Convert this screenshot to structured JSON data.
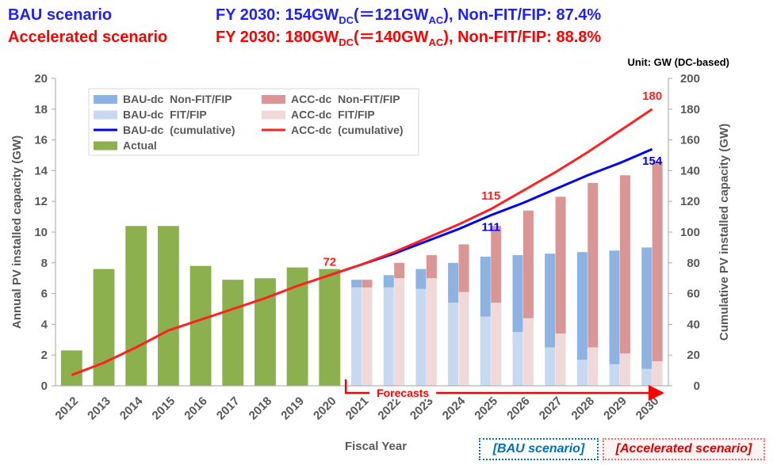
{
  "header": {
    "bau": {
      "label": "BAU scenario",
      "color": "#1f1fff",
      "parts": [
        "FY 2030: 154GW",
        {
          "sub": "DC"
        },
        "(＝121GW",
        {
          "sub": "AC"
        },
        "), Non-FIT/FIP: 87.4%"
      ]
    },
    "acc": {
      "label": "Accelerated scenario",
      "color": "#ff0000",
      "parts": [
        "FY 2030: 180GW",
        {
          "sub": "DC"
        },
        "(＝140GW",
        {
          "sub": "AC"
        },
        "), Non-FIT/FIP: 88.8%"
      ]
    }
  },
  "chart_data": {
    "type": "bar",
    "unit": "Unit: GW (DC-based)",
    "xlabel": "Fiscal Year",
    "ylabel": "Annual PV installed capacity (GW)",
    "y2label": "Cumulative PV installed capacity (GW)",
    "forecast_label": "Forecasts",
    "categories": [
      "2012",
      "2013",
      "2014",
      "2015",
      "2016",
      "2017",
      "2018",
      "2019",
      "2020",
      "2021",
      "2022",
      "2023",
      "2024",
      "2025",
      "2026",
      "2027",
      "2028",
      "2029",
      "2030"
    ],
    "ylim": [
      0,
      20
    ],
    "yticks": [
      0,
      2,
      4,
      6,
      8,
      10,
      12,
      14,
      16,
      18,
      20
    ],
    "y2lim": [
      0,
      200
    ],
    "y2ticks": [
      0,
      20,
      40,
      60,
      80,
      100,
      120,
      140,
      160,
      180,
      200
    ],
    "series": [
      {
        "name": "BAU-dc  Non-FIT/FIP",
        "kind": "bar",
        "position": "left",
        "color": "#8db3e2",
        "values": [
          null,
          null,
          null,
          null,
          null,
          null,
          null,
          null,
          null,
          0.5,
          0.8,
          1.3,
          2.6,
          3.9,
          5.0,
          6.1,
          7.0,
          7.4,
          7.9
        ]
      },
      {
        "name": "BAU-dc  FIT/FIP",
        "kind": "bar",
        "position": "left",
        "color": "#c6d9f1",
        "values": [
          null,
          null,
          null,
          null,
          null,
          null,
          null,
          null,
          null,
          6.4,
          6.4,
          6.3,
          5.4,
          4.5,
          3.5,
          2.5,
          1.7,
          1.4,
          1.1
        ]
      },
      {
        "name": "BAU-dc  (cumulative)",
        "kind": "line",
        "axis": "y2",
        "color": "#0000ff",
        "label_position": "below",
        "values": [
          null,
          null,
          null,
          null,
          null,
          null,
          null,
          null,
          72,
          79,
          86,
          94,
          102,
          111,
          119,
          128,
          137,
          145,
          154
        ],
        "value_labels": [
          null,
          null,
          null,
          null,
          null,
          null,
          null,
          null,
          null,
          null,
          null,
          null,
          null,
          "111",
          null,
          null,
          null,
          null,
          "154"
        ]
      },
      {
        "name": "Actual",
        "kind": "bar",
        "position": "center",
        "color": "#8db04f",
        "values": [
          2.3,
          7.6,
          10.4,
          10.4,
          7.8,
          6.9,
          7.0,
          7.7,
          7.6,
          null,
          null,
          null,
          null,
          null,
          null,
          null,
          null,
          null,
          null
        ]
      },
      {
        "name": "ACC-dc  Non-FIT/FIP",
        "kind": "bar",
        "position": "right",
        "color": "#d99694",
        "values": [
          null,
          null,
          null,
          null,
          null,
          null,
          null,
          null,
          null,
          0.5,
          1.0,
          1.5,
          3.1,
          5.0,
          7.0,
          8.9,
          10.7,
          11.6,
          13.0
        ]
      },
      {
        "name": "ACC-dc  FIT/FIP",
        "kind": "bar",
        "position": "right",
        "color": "#f2d9d9",
        "values": [
          null,
          null,
          null,
          null,
          null,
          null,
          null,
          null,
          null,
          6.4,
          7.0,
          7.0,
          6.1,
          5.4,
          4.4,
          3.4,
          2.5,
          2.1,
          1.6
        ]
      },
      {
        "name": "ACC-dc  (cumulative)",
        "kind": "line",
        "axis": "y2",
        "color": "#ff2020",
        "label_position": "above",
        "values": [
          7,
          15,
          25,
          36,
          43,
          50,
          57,
          65,
          72,
          79,
          87,
          96,
          105,
          115,
          127,
          139,
          152,
          166,
          180
        ],
        "value_labels": [
          null,
          null,
          null,
          null,
          null,
          null,
          null,
          null,
          "72",
          null,
          null,
          null,
          null,
          "115",
          null,
          null,
          null,
          null,
          "180"
        ]
      }
    ]
  },
  "buttons": [
    "[BAU scenario]",
    "[Accelerated scenario]"
  ]
}
